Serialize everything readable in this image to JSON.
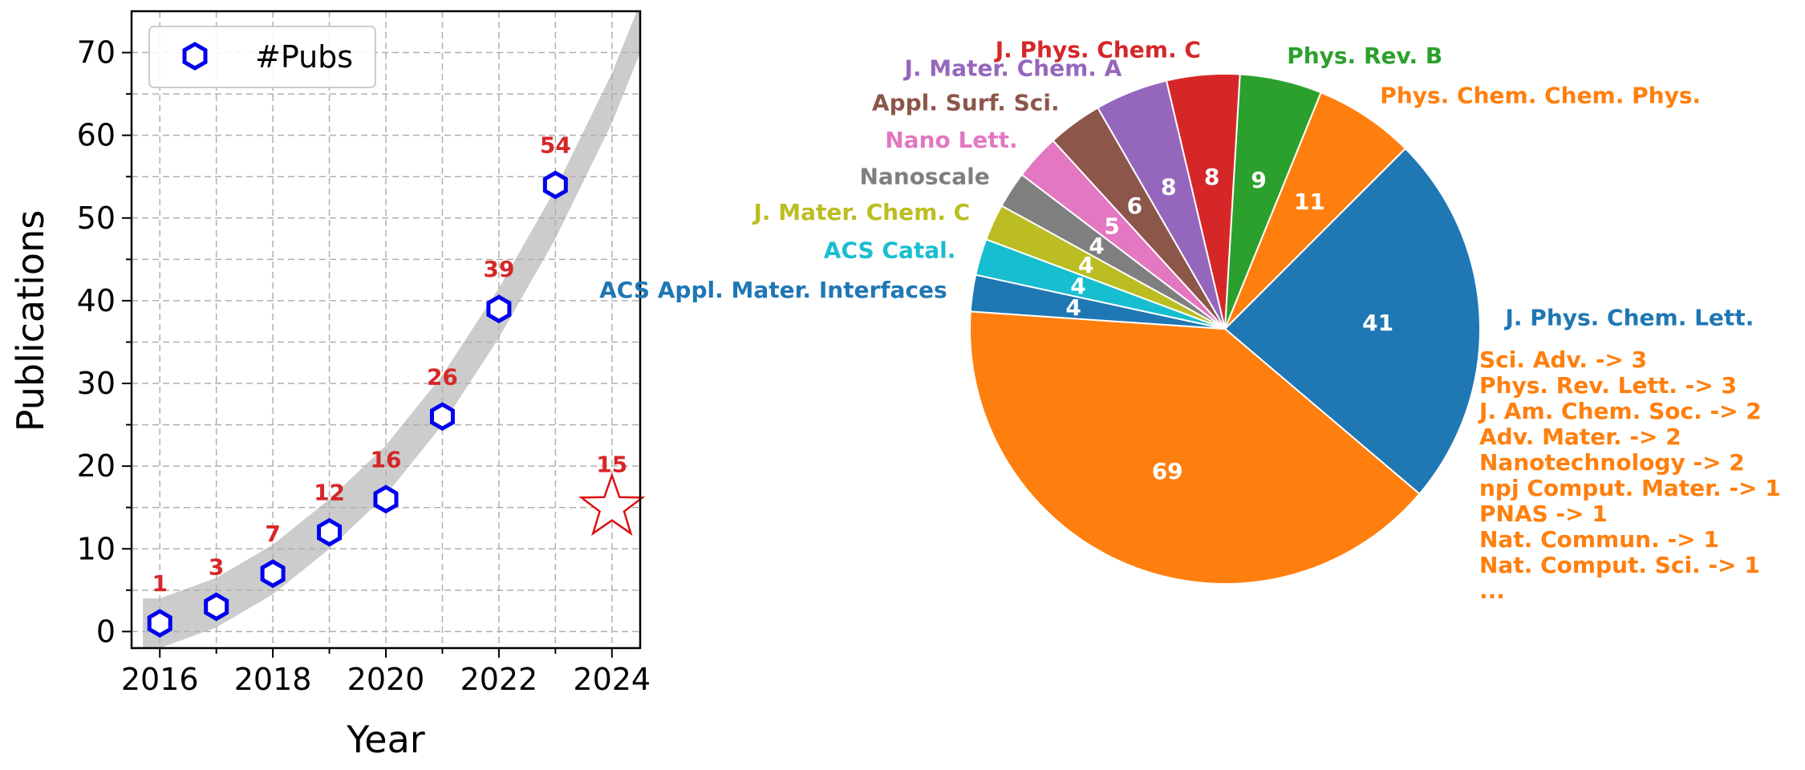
{
  "chart_data": [
    {
      "type": "scatter",
      "xlabel": "Year",
      "ylabel": "Publications",
      "xlim": [
        2015.5,
        2024.5
      ],
      "ylim": [
        -2,
        75
      ],
      "xticks": [
        "2016",
        "2018",
        "2020",
        "2022",
        "2024"
      ],
      "yticks": [
        "0",
        "10",
        "20",
        "30",
        "40",
        "50",
        "60",
        "70"
      ],
      "grid": true,
      "legend": {
        "placement": "top-left",
        "label": "#Pubs"
      },
      "series": [
        {
          "name": "#Pubs",
          "marker": "hexagon",
          "color": "#0000ee",
          "x": [
            2016,
            2017,
            2018,
            2019,
            2020,
            2021,
            2022,
            2023
          ],
          "y": [
            1,
            3,
            7,
            12,
            16,
            26,
            39,
            54
          ],
          "labels": [
            "1",
            "3",
            "7",
            "12",
            "16",
            "26",
            "39",
            "54"
          ]
        },
        {
          "marker": "star",
          "color": "#dd1111",
          "x": [
            2024
          ],
          "y": [
            15
          ],
          "labels": [
            "15"
          ]
        }
      ],
      "trend_band": {
        "color": "#cccccc",
        "x": [
          2015.7,
          2016,
          2017,
          2018,
          2019,
          2020,
          2021,
          2022,
          2023,
          2024,
          2024.5
        ],
        "center": [
          1.0,
          1.0,
          3.5,
          7.5,
          13.0,
          19.5,
          28.0,
          38.5,
          50.5,
          64.5,
          73.0
        ],
        "half_width": 3.0
      },
      "label_color": "#d62728"
    },
    {
      "type": "pie",
      "slices": [
        {
          "label": "J. Phys. Chem. Lett.",
          "value": 41,
          "color": "#1f77b4"
        },
        {
          "label": "",
          "value": 69,
          "color": "#ff7f0e"
        },
        {
          "label": "ACS Appl. Mater. Interfaces",
          "value": 4,
          "color": "#1f77b4"
        },
        {
          "label": "ACS Catal.",
          "value": 4,
          "color": "#17becf"
        },
        {
          "label": "J. Mater. Chem. C",
          "value": 4,
          "color": "#bcbd22"
        },
        {
          "label": "Nanoscale",
          "value": 4,
          "color": "#7f7f7f"
        },
        {
          "label": "Nano Lett.",
          "value": 5,
          "color": "#e377c2"
        },
        {
          "label": "Appl. Surf. Sci.",
          "value": 6,
          "color": "#8c564b"
        },
        {
          "label": "J. Mater. Chem. A",
          "value": 8,
          "color": "#9467bd"
        },
        {
          "label": "J. Phys. Chem. C",
          "value": 8,
          "color": "#d62728"
        },
        {
          "label": "Phys. Rev. B",
          "value": 9,
          "color": "#2ca02c"
        },
        {
          "label": "Phys. Chem. Chem. Phys.",
          "value": 11,
          "color": "#ff7f0e"
        }
      ],
      "others": {
        "color": "#ff7f0e",
        "lines": [
          "Sci. Adv. ->  3",
          "Phys. Rev. Lett. ->  3",
          "J. Am. Chem. Soc. ->  2",
          "Adv. Mater. ->  2",
          "Nanotechnology ->  2",
          "npj Comput. Mater. ->  1",
          "PNAS ->  1",
          "Nat. Commun. ->  1",
          "Nat. Comput. Sci. ->  1",
          "..."
        ]
      }
    }
  ]
}
